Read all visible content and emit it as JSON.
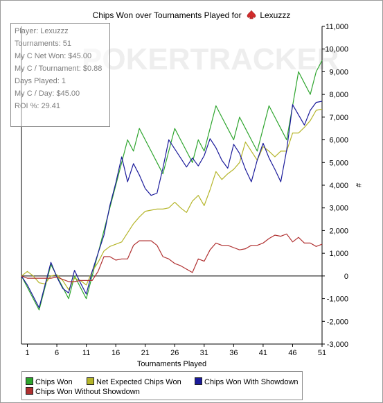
{
  "title_prefix": "Chips Won over Tournaments Played for",
  "player_name": "Lexuzzz",
  "watermark": "POKERTRACKER",
  "stats": {
    "player": "Player: Lexuzzz",
    "tournaments": "Tournaments: 51",
    "net_won": "My C Net Won: $45.00",
    "per_tournament": "My C / Tournament: $0.88",
    "days_played": "Days Played: 1",
    "per_day": "My C / Day: $45.00",
    "roi": "ROI %: 29.41"
  },
  "colors": {
    "chips_won": "#2ea52e",
    "net_expected": "#b5b52a",
    "with_showdown": "#1a1a9a",
    "without_showdown": "#b03030",
    "zero_line": "#000000",
    "spade": "#d02b2b"
  },
  "chart_data": {
    "type": "line",
    "title": "Chips Won over Tournaments Played for Lexuzzz",
    "xlabel": "Tournaments Played",
    "ylabel": "#",
    "xlim": [
      0,
      51
    ],
    "ylim": [
      -3000,
      11000
    ],
    "x_ticks": [
      "1",
      "6",
      "11",
      "16",
      "21",
      "26",
      "31",
      "36",
      "41",
      "46",
      "51"
    ],
    "x_tick_values": [
      1,
      6,
      11,
      16,
      21,
      26,
      31,
      36,
      41,
      46,
      51
    ],
    "y_ticks": [
      "11,000",
      "10,000",
      "9,000",
      "8,000",
      "7,000",
      "6,000",
      "5,000",
      "4,000",
      "3,000",
      "2,000",
      "1,000",
      "0",
      "-1,000",
      "-2,000",
      "-3,000"
    ],
    "y_tick_values": [
      11000,
      10000,
      9000,
      8000,
      7000,
      6000,
      5000,
      4000,
      3000,
      2000,
      1000,
      0,
      -1000,
      -2000,
      -3000
    ],
    "legend_position": "bottom",
    "grid": false,
    "x": [
      0,
      1,
      2,
      3,
      4,
      5,
      6,
      7,
      8,
      9,
      10,
      11,
      12,
      13,
      14,
      15,
      16,
      17,
      18,
      19,
      20,
      21,
      22,
      23,
      24,
      25,
      26,
      27,
      28,
      29,
      30,
      31,
      32,
      33,
      34,
      35,
      36,
      37,
      38,
      39,
      40,
      41,
      42,
      43,
      44,
      45,
      46,
      47,
      48,
      49,
      50,
      51
    ],
    "series": [
      {
        "name": "Chips Won",
        "color_key": "chips_won",
        "values": [
          0,
          -500,
          -1000,
          -1500,
          -500,
          500,
          0,
          -500,
          -1000,
          0,
          -500,
          -1000,
          0,
          1000,
          2000,
          3000,
          4000,
          5000,
          6000,
          5500,
          6500,
          6000,
          5500,
          5000,
          4500,
          5500,
          6500,
          6000,
          5500,
          5000,
          6000,
          5500,
          6500,
          7500,
          7000,
          6500,
          6000,
          7000,
          6500,
          6000,
          5500,
          6500,
          7500,
          7000,
          6500,
          6000,
          7500,
          9000,
          8500,
          8000,
          9000,
          9500
        ]
      },
      {
        "name": "Net Expected Chips Won",
        "color_key": "net_expected",
        "values": [
          0,
          200,
          0,
          -300,
          -350,
          0,
          50,
          -200,
          -600,
          -100,
          -200,
          -400,
          200,
          600,
          1100,
          1300,
          1400,
          1500,
          1900,
          2300,
          2600,
          2850,
          2900,
          2950,
          2950,
          3000,
          3250,
          3000,
          2800,
          3300,
          3550,
          3100,
          3800,
          4600,
          4250,
          4500,
          4700,
          5000,
          5900,
          5500,
          5100,
          5700,
          5500,
          5250,
          5500,
          5500,
          6300,
          6300,
          6550,
          6850,
          7300,
          7350
        ]
      },
      {
        "name": "Chips Won With Showdown",
        "color_key": "with_showdown",
        "values": [
          0,
          -400,
          -900,
          -1400,
          -400,
          600,
          -50,
          -550,
          -750,
          250,
          -300,
          -800,
          200,
          1000,
          1800,
          3100,
          4100,
          5250,
          4150,
          4950,
          4450,
          3850,
          3550,
          3650,
          4750,
          6000,
          5600,
          5200,
          4800,
          5200,
          4850,
          5300,
          6050,
          5650,
          5100,
          4750,
          5800,
          5400,
          4700,
          4150,
          5100,
          5850,
          5200,
          4700,
          4150,
          5550,
          7550,
          7100,
          6650,
          7300,
          7650,
          7700
        ]
      },
      {
        "name": "Chips Won Without Showdown",
        "color_key": "without_showdown",
        "values": [
          0,
          -100,
          -100,
          -100,
          -100,
          -100,
          -50,
          -150,
          -250,
          -250,
          -200,
          -200,
          -200,
          200,
          850,
          850,
          700,
          750,
          750,
          1350,
          1550,
          1550,
          1550,
          1350,
          850,
          750,
          550,
          450,
          300,
          150,
          750,
          650,
          1150,
          1450,
          1350,
          1350,
          1250,
          1150,
          1200,
          1350,
          1350,
          1450,
          1650,
          1800,
          1750,
          1850,
          1500,
          1700,
          1450,
          1450,
          1300,
          1400
        ]
      }
    ]
  }
}
